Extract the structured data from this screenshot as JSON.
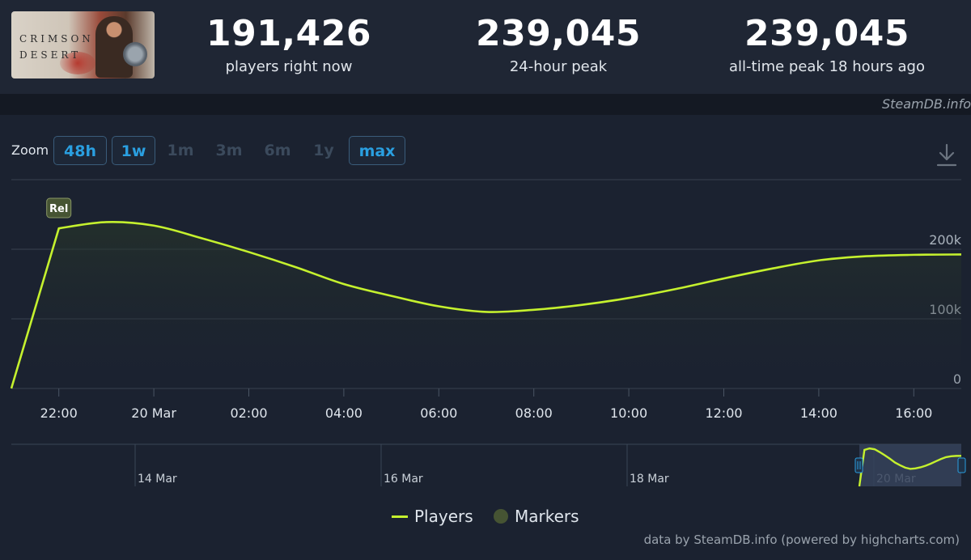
{
  "header": {
    "game_logo_text": "CRIMSON DESERT",
    "stats": [
      {
        "value": "191,426",
        "label": "players right now"
      },
      {
        "value": "239,045",
        "label": "24-hour peak"
      },
      {
        "value": "239,045",
        "label": "all-time peak 18 hours ago"
      }
    ],
    "source_credit": "SteamDB.info"
  },
  "zoom": {
    "label": "Zoom",
    "buttons": [
      {
        "label": "48h",
        "active": true
      },
      {
        "label": "1w",
        "active": true
      },
      {
        "label": "1m",
        "active": false
      },
      {
        "label": "3m",
        "active": false
      },
      {
        "label": "6m",
        "active": false
      },
      {
        "label": "1y",
        "active": false
      },
      {
        "label": "max",
        "active": true
      }
    ],
    "download_icon": "download-icon"
  },
  "chart_data": {
    "type": "area",
    "series": [
      {
        "name": "Players",
        "color": "#c5f12e",
        "x": [
          "2026-03-19T21:00",
          "2026-03-19T22:00",
          "2026-03-19T23:00",
          "2026-03-20T00:00",
          "2026-03-20T01:00",
          "2026-03-20T02:00",
          "2026-03-20T03:00",
          "2026-03-20T04:00",
          "2026-03-20T05:00",
          "2026-03-20T06:00",
          "2026-03-20T07:00",
          "2026-03-20T08:00",
          "2026-03-20T09:00",
          "2026-03-20T10:00",
          "2026-03-20T11:00",
          "2026-03-20T12:00",
          "2026-03-20T13:00",
          "2026-03-20T14:00",
          "2026-03-20T15:00",
          "2026-03-20T16:00",
          "2026-03-20T17:00"
        ],
        "values": [
          0,
          230000,
          239045,
          234000,
          216000,
          196000,
          174000,
          150000,
          133000,
          118000,
          110000,
          113000,
          120000,
          130000,
          143000,
          158000,
          172000,
          184000,
          190000,
          192000,
          192500
        ]
      }
    ],
    "markers": [
      {
        "x": "2026-03-19T22:00",
        "label": "Rel"
      }
    ],
    "legend": [
      "Players",
      "Markers"
    ],
    "x_tick_labels": [
      "22:00",
      "20 Mar",
      "02:00",
      "04:00",
      "06:00",
      "08:00",
      "10:00",
      "12:00",
      "14:00",
      "16:00"
    ],
    "y_tick_labels": [
      "0",
      "100k",
      "200k"
    ],
    "ylim": [
      0,
      300000
    ],
    "grid": true,
    "navigator": {
      "labels": [
        "14 Mar",
        "16 Mar",
        "18 Mar",
        "20 Mar"
      ]
    }
  },
  "legend": {
    "players": "Players",
    "markers": "Markers",
    "players_color": "#c5f12e",
    "markers_color": "#465433"
  },
  "footer": {
    "credit": "data by SteamDB.info (powered by highcharts.com)"
  }
}
